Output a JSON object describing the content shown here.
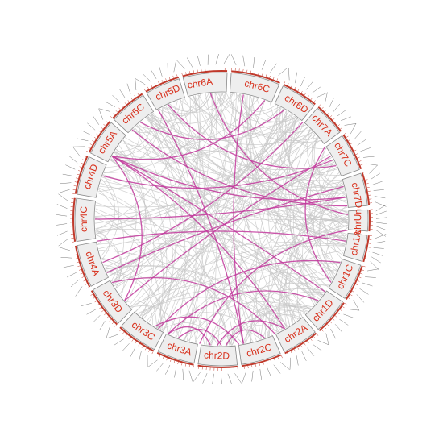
{
  "nodes": [
    {
      "label": "chr6A"
    },
    {
      "label": "chr6C"
    },
    {
      "label": "chr6D"
    },
    {
      "label": "chr7A"
    },
    {
      "label": "chr7C"
    },
    {
      "label": "chr7D"
    },
    {
      "label": "chrUn"
    },
    {
      "label": "chr1A"
    },
    {
      "label": "chr1C"
    },
    {
      "label": "chr1D"
    },
    {
      "label": "chr2A"
    },
    {
      "label": "chr2C"
    },
    {
      "label": "chr2D"
    },
    {
      "label": "chr3A"
    },
    {
      "label": "chr3C"
    },
    {
      "label": "chr3D"
    },
    {
      "label": "chr4A"
    },
    {
      "label": "chr4C"
    },
    {
      "label": "chr4D"
    },
    {
      "label": "chr5A"
    },
    {
      "label": "chr5C"
    },
    {
      "label": "chr5D"
    }
  ]
}
